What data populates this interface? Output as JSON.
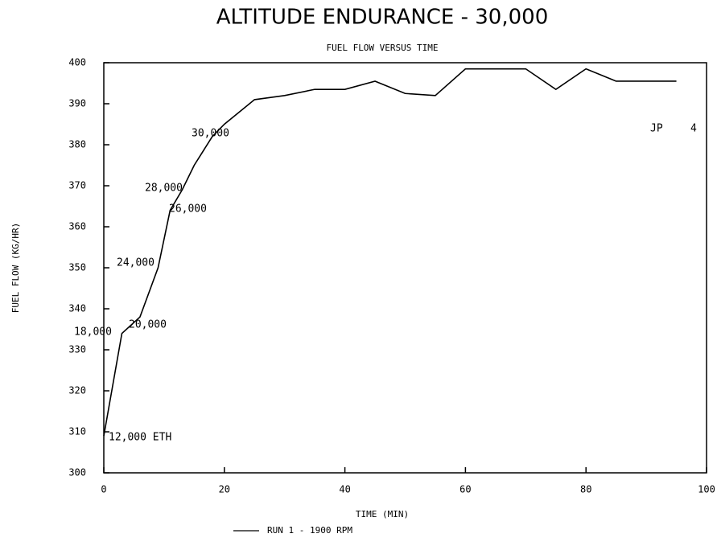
{
  "chart_data": {
    "type": "line",
    "title": "ALTITUDE ENDURANCE - 30,000",
    "subtitle": "FUEL FLOW VERSUS TIME",
    "x_label": "TIME (MIN)",
    "y_label": "FUEL FLOW (KG/HR)",
    "x": [
      0,
      3,
      6,
      9,
      11,
      13,
      15,
      18,
      20,
      25,
      30,
      35,
      40,
      45,
      50,
      55,
      60,
      70,
      75,
      80,
      85,
      95
    ],
    "series": [
      {
        "name": "RUN 1 - 1900 RPM",
        "color": "#000000",
        "values": [
          309,
          334,
          338,
          350,
          364,
          369,
          375,
          382,
          385,
          391,
          392,
          393.5,
          393.5,
          395.5,
          392.5,
          392,
          398.5,
          398.5,
          393.5,
          398.5,
          395.5,
          395.5
        ]
      }
    ],
    "annotations": [
      "12,000 ETH",
      "18,000",
      "20,000",
      "24,000",
      "28,000",
      "26,000",
      "30,000",
      "JP",
      "4"
    ],
    "xlim": [
      0,
      100
    ],
    "ylim": [
      300,
      400
    ],
    "xticks": [
      0,
      20,
      40,
      60,
      80,
      100
    ],
    "yticks": [
      300,
      310,
      320,
      330,
      340,
      350,
      360,
      370,
      380,
      390,
      400
    ],
    "grid": false
  }
}
